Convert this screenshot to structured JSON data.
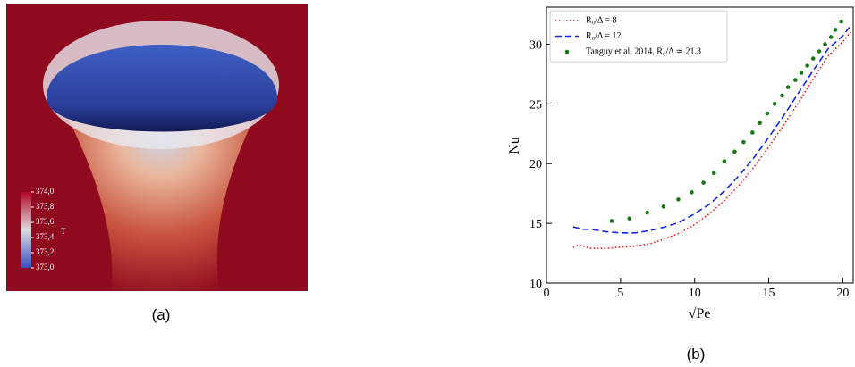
{
  "panel_a": {
    "caption": "(a)",
    "colorbar": {
      "label": "T",
      "clim": [
        373.0,
        374.0
      ],
      "ticks": [
        {
          "value": 374.0,
          "label": "374,0"
        },
        {
          "value": 373.8,
          "label": "373,8"
        },
        {
          "value": 373.6,
          "label": "373,6"
        },
        {
          "value": 373.4,
          "label": "373,4"
        },
        {
          "value": 373.2,
          "label": "373,2"
        },
        {
          "value": 373.0,
          "label": "373,0"
        }
      ]
    }
  },
  "chart_data": {
    "type": "line",
    "caption": "(b)",
    "x_label": "√Pe",
    "y_label": "Nu",
    "xlim": [
      0,
      20.7
    ],
    "ylim": [
      10,
      33.1
    ],
    "xticks": [
      0,
      5,
      10,
      15,
      20
    ],
    "yticks": [
      10,
      15,
      20,
      25,
      30
    ],
    "legend": "upper-left",
    "series": [
      {
        "name": "R₀/Δ = 8",
        "color": "#e8191b",
        "style": "dotted",
        "x": [
          1.8,
          2.2,
          3,
          4,
          5,
          6,
          7,
          8,
          9,
          10,
          11,
          12,
          13,
          14,
          15,
          16,
          17,
          18,
          19,
          20,
          20.5
        ],
        "values": [
          13.0,
          13.2,
          12.9,
          12.9,
          13.0,
          13.1,
          13.3,
          13.7,
          14.2,
          14.9,
          15.8,
          16.9,
          18.2,
          19.7,
          21.4,
          23.2,
          25.1,
          27.1,
          29.0,
          30.2,
          31.0
        ]
      },
      {
        "name": "R₀/Δ = 12",
        "color": "#1428e8",
        "style": "dashed",
        "x": [
          1.8,
          2.5,
          3,
          4,
          5,
          6,
          7,
          8,
          9,
          10,
          11,
          12,
          13,
          14,
          15,
          16,
          17,
          18,
          19,
          20,
          20.5
        ],
        "values": [
          14.7,
          14.5,
          14.5,
          14.3,
          14.2,
          14.2,
          14.4,
          14.7,
          15.1,
          15.8,
          16.6,
          17.7,
          19.0,
          20.5,
          22.2,
          24.0,
          25.9,
          27.8,
          29.6,
          30.7,
          31.5
        ]
      },
      {
        "name": "Tanguy et al. 2014, R₀/Δ ≃ 21.3",
        "color": "#157a15",
        "style": "points",
        "x": [
          4.4,
          5.6,
          6.8,
          7.9,
          8.9,
          9.8,
          10.6,
          11.3,
          12.0,
          12.7,
          13.3,
          13.9,
          14.4,
          14.9,
          15.4,
          15.9,
          16.3,
          16.8,
          17.2,
          17.6,
          18.0,
          18.4,
          18.8,
          19.2,
          19.5,
          19.9
        ],
        "values": [
          15.2,
          15.4,
          15.9,
          16.4,
          17.0,
          17.6,
          18.4,
          19.2,
          20.2,
          21.0,
          21.8,
          22.6,
          23.4,
          24.2,
          25.0,
          25.7,
          26.4,
          27.0,
          27.6,
          28.2,
          28.8,
          29.4,
          30.0,
          30.6,
          31.2,
          31.9
        ]
      }
    ]
  }
}
